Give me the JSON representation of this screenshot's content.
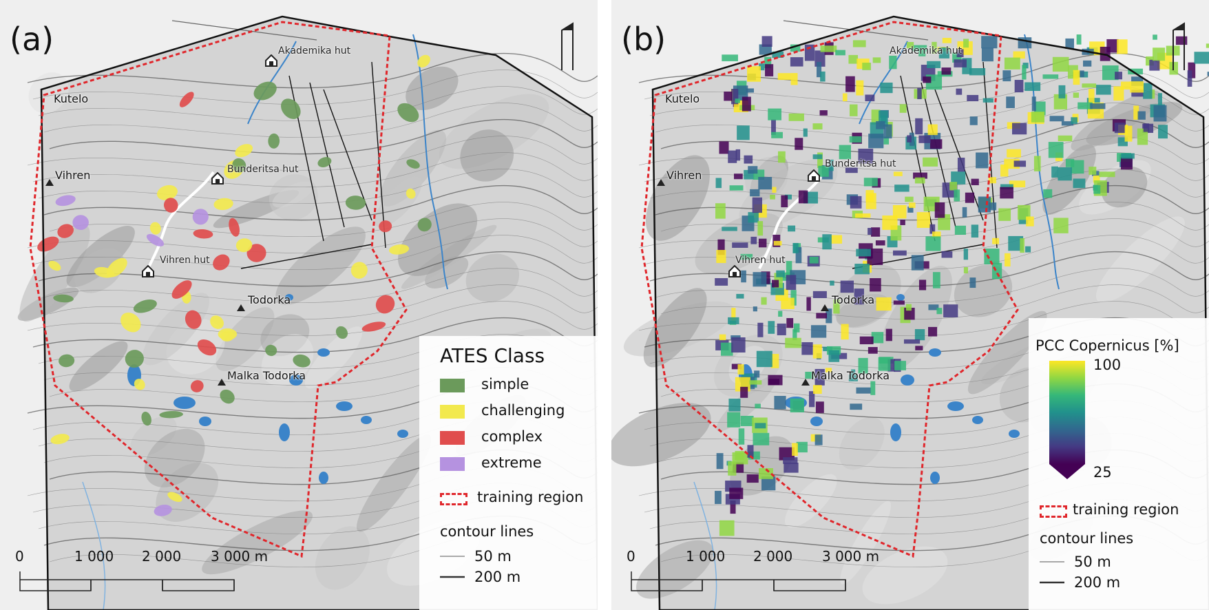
{
  "panels": {
    "a": {
      "label": "(a)",
      "legend_title": "ATES Class",
      "classes": [
        {
          "label": "simple",
          "color": "#6b9a5b"
        },
        {
          "label": "challenging",
          "color": "#f2e94e"
        },
        {
          "label": "complex",
          "color": "#e04d4d"
        },
        {
          "label": "extreme",
          "color": "#b592e0"
        }
      ]
    },
    "b": {
      "label": "(b)",
      "legend_title": "PCC Copernicus [%]",
      "colorbar_max": "100",
      "colorbar_min": "25",
      "colormap": [
        "#fde725",
        "#90d743",
        "#35b779",
        "#21918c",
        "#31688e",
        "#443983",
        "#440154"
      ]
    }
  },
  "places": {
    "kutelo": "Kutelo",
    "vihren": "Vihren",
    "akademika_hut": "Akademika hut",
    "bunderitsa_hut": "Bunderitsa hut",
    "vihren_hut": "Vihren hut",
    "todorka": "Todorka",
    "malka_todorka": "Malka Todorka"
  },
  "training_region": {
    "label": "training region",
    "color": "#e0262b"
  },
  "contour_lines": {
    "title": "contour lines",
    "minor": "50 m",
    "major": "200 m"
  },
  "scalebar": {
    "labels": [
      "0",
      "1 000",
      "2 000",
      "3 000 m"
    ]
  },
  "colors": {
    "water": "#3b84c9",
    "background": "#efefef",
    "boundary": "#111111"
  }
}
